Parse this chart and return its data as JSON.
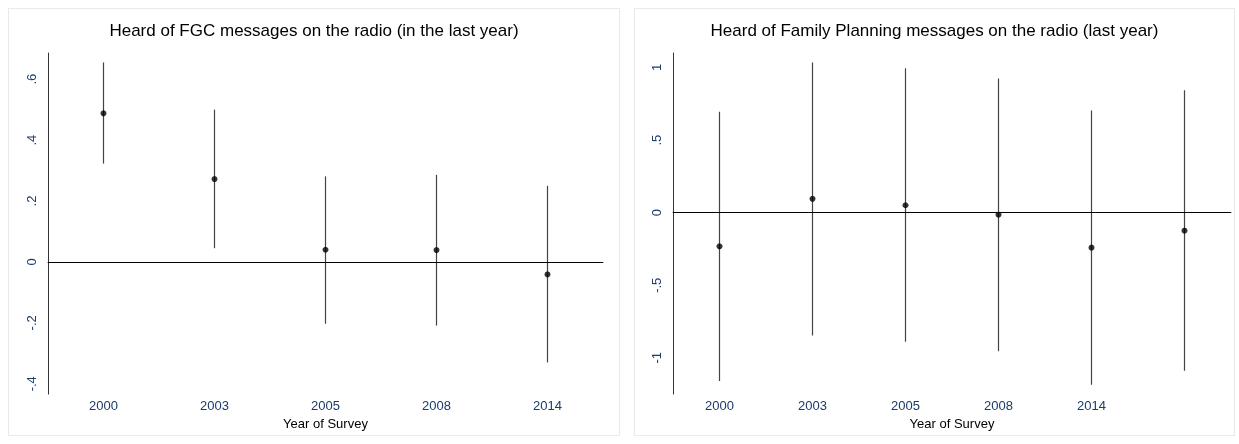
{
  "chart_data": [
    {
      "type": "scatter",
      "title": "Heard of FGC messages on the radio (in the last year)",
      "xlabel": "Year of Survey",
      "categories": [
        "2000",
        "2003",
        "2005",
        "2008",
        "2014"
      ],
      "series": [
        {
          "color": "#000000",
          "values": [
            0.488,
            0.272,
            0.04,
            0.039,
            -0.041
          ],
          "errors": [
            [
              0.323,
              0.655
            ],
            [
              0.045,
              0.5
            ],
            [
              -0.203,
              0.281
            ],
            [
              -0.209,
              0.286
            ],
            [
              -0.33,
              0.25
            ]
          ]
        }
      ],
      "ylim": [
        -0.434,
        0.686
      ],
      "yticks": [
        {
          "value": -0.4,
          "label": "-.4"
        },
        {
          "value": -0.2,
          "label": "-.2"
        },
        0,
        {
          "value": 0.2,
          "label": ".2"
        },
        {
          "value": 0.4,
          "label": ".4"
        },
        {
          "value": 0.6,
          "label": ".6"
        }
      ],
      "ref_lines": [
        {
          "axis": "y",
          "value": 0,
          "color": "#000000"
        }
      ],
      "marker": "circle",
      "grid": false
    },
    {
      "type": "scatter",
      "title": "Heard of Family Planning messages on the radio (last year)",
      "xlabel": "Year of Survey",
      "categories": [
        "2000",
        "2003",
        "2005",
        "2008",
        "2014",
        null
      ],
      "series": [
        {
          "color": "#000000",
          "values": [
            -0.232,
            0.095,
            0.051,
            -0.014,
            -0.241,
            -0.124
          ],
          "errors": [
            [
              -1.159,
              0.695
            ],
            [
              -0.846,
              1.035
            ],
            [
              -0.889,
              0.995
            ],
            [
              -0.954,
              0.924
            ],
            [
              -1.186,
              0.703
            ],
            [
              -1.089,
              0.843
            ]
          ]
        }
      ],
      "ylim": [
        -1.25,
        1.1
      ],
      "yticks": [
        {
          "value": -1,
          "label": "-1"
        },
        {
          "value": -0.5,
          "label": "-.5"
        },
        0,
        {
          "value": 0.5,
          "label": ".5"
        },
        {
          "value": 1,
          "label": "1"
        }
      ],
      "ref_lines": [
        {
          "axis": "y",
          "value": 0,
          "color": "#000000"
        }
      ],
      "marker": "circle",
      "grid": false
    }
  ]
}
